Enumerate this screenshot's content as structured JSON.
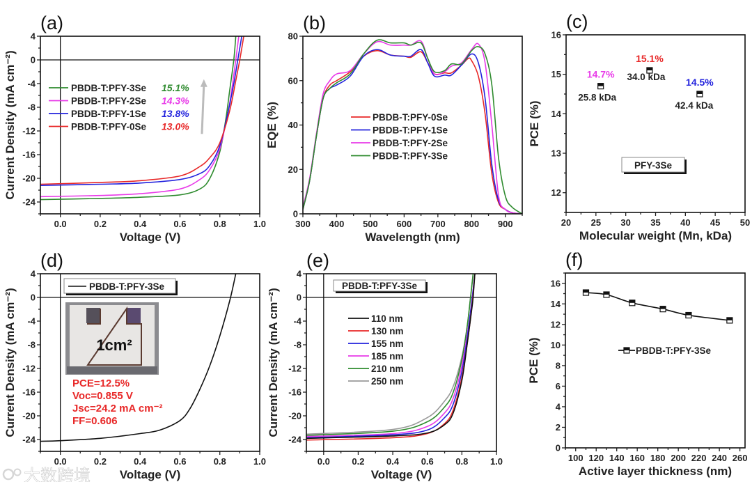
{
  "chart_data": [
    {
      "id": "a",
      "type": "line",
      "panel_label": "(a)",
      "xlabel": "Voltage (V)",
      "ylabel": "Current Density (mA cm⁻²)",
      "xlim": [
        -0.1,
        1.0
      ],
      "ylim": [
        -26,
        4
      ],
      "xticks": [
        0,
        0.2,
        0.4,
        0.6,
        0.8,
        1.0
      ],
      "xtick_labels": [
        "0.0",
        "0.2",
        "0.4",
        "0.6",
        "0.8",
        "1.0"
      ],
      "yticks": [
        4,
        0,
        -4,
        -8,
        -12,
        -16,
        -20,
        -24
      ],
      "ytick_labels": [
        "4",
        "0",
        "-4",
        "-8",
        "-12",
        "-16",
        "-20",
        "-24"
      ],
      "zero_lines": true,
      "legend": [
        {
          "name": "PBDB-T:PFY-3Se",
          "pce": "15.1%",
          "color": "#2e8b2e"
        },
        {
          "name": "PBDB-T:PFY-2Se",
          "pce": "14.3%",
          "color": "#e83ae8"
        },
        {
          "name": "PBDB-T:PFY-1Se",
          "pce": "13.8%",
          "color": "#2222dd"
        },
        {
          "name": "PBDB-T:PFY-0Se",
          "pce": "13.0%",
          "color": "#e82828"
        }
      ],
      "arrow": {
        "from": [
          0.71,
          -12.5
        ],
        "to": [
          0.72,
          -3.5
        ],
        "color": "#bbbbbb"
      },
      "series": [
        {
          "name": "PBDB-T:PFY-3Se",
          "color": "#2e8b2e",
          "x": [
            -0.1,
            0.2,
            0.4,
            0.6,
            0.7,
            0.75,
            0.8,
            0.83,
            0.85,
            0.87,
            0.88
          ],
          "y": [
            -23.6,
            -23.4,
            -23.2,
            -22.8,
            -21.8,
            -20,
            -15.5,
            -10,
            -5,
            0,
            4
          ]
        },
        {
          "name": "PBDB-T:PFY-2Se",
          "color": "#e83ae8",
          "x": [
            -0.1,
            0.2,
            0.4,
            0.6,
            0.7,
            0.75,
            0.8,
            0.84,
            0.86,
            0.88,
            0.895
          ],
          "y": [
            -23.1,
            -22.9,
            -22.6,
            -21.8,
            -20.2,
            -18.5,
            -15,
            -9,
            -5,
            0,
            4
          ]
        },
        {
          "name": "PBDB-T:PFY-1Se",
          "color": "#2222dd",
          "x": [
            -0.1,
            0.2,
            0.4,
            0.6,
            0.7,
            0.75,
            0.8,
            0.84,
            0.87,
            0.89,
            0.91
          ],
          "y": [
            -21.2,
            -21.0,
            -20.8,
            -20.2,
            -19.2,
            -17.8,
            -14.5,
            -9,
            -4,
            0,
            4
          ]
        },
        {
          "name": "PBDB-T:PFY-0Se",
          "color": "#e82828",
          "x": [
            -0.1,
            0.2,
            0.4,
            0.6,
            0.7,
            0.75,
            0.8,
            0.85,
            0.88,
            0.9,
            0.92
          ],
          "y": [
            -21.0,
            -20.7,
            -20.4,
            -19.6,
            -18.0,
            -16.5,
            -14,
            -8.5,
            -3.5,
            0,
            4
          ]
        }
      ]
    },
    {
      "id": "b",
      "type": "line",
      "panel_label": "(b)",
      "xlabel": "Wavelength (nm)",
      "ylabel": "EQE (%)",
      "xlim": [
        300,
        950
      ],
      "ylim": [
        0,
        80
      ],
      "xticks": [
        300,
        400,
        500,
        600,
        700,
        800,
        900
      ],
      "xtick_labels": [
        "300",
        "400",
        "500",
        "600",
        "700",
        "800",
        "900"
      ],
      "yticks": [
        0,
        20,
        40,
        60,
        80
      ],
      "ytick_labels": [
        "0",
        "20",
        "40",
        "60",
        "80"
      ],
      "legend": [
        {
          "name": "PBDB-T:PFY-0Se",
          "color": "#e82828"
        },
        {
          "name": "PBDB-T:PFY-1Se",
          "color": "#2222dd"
        },
        {
          "name": "PBDB-T:PFY-2Se",
          "color": "#e83ae8"
        },
        {
          "name": "PBDB-T:PFY-3Se",
          "color": "#2e8b2e"
        }
      ],
      "series": [
        {
          "name": "PBDB-T:PFY-0Se",
          "color": "#e82828",
          "x": [
            300,
            320,
            340,
            360,
            380,
            400,
            440,
            480,
            520,
            560,
            600,
            620,
            650,
            670,
            690,
            720,
            740,
            770,
            790,
            800,
            820,
            840,
            860,
            880,
            900,
            920,
            950
          ],
          "y": [
            2,
            15,
            35,
            52,
            58,
            60,
            64,
            71,
            73.5,
            71.5,
            71,
            70.5,
            73,
            68,
            63,
            63.5,
            63.5,
            67,
            70,
            69,
            62,
            45,
            18,
            5,
            2,
            0.5,
            0
          ]
        },
        {
          "name": "PBDB-T:PFY-1Se",
          "color": "#2222dd",
          "x": [
            300,
            320,
            340,
            360,
            380,
            400,
            440,
            480,
            520,
            560,
            600,
            620,
            650,
            670,
            690,
            720,
            740,
            770,
            800,
            820,
            840,
            860,
            880,
            900,
            920,
            950
          ],
          "y": [
            2,
            15,
            35,
            52,
            56.5,
            58,
            62,
            71,
            74,
            71.5,
            71,
            71,
            74,
            68,
            62,
            62.5,
            62.5,
            67,
            72,
            68,
            52,
            22,
            6,
            2,
            0.5,
            0
          ]
        },
        {
          "name": "PBDB-T:PFY-2Se",
          "color": "#e83ae8",
          "x": [
            300,
            320,
            340,
            360,
            380,
            400,
            440,
            480,
            520,
            560,
            600,
            620,
            650,
            670,
            690,
            720,
            740,
            770,
            800,
            820,
            840,
            860,
            880,
            900,
            920,
            950
          ],
          "y": [
            3,
            16,
            36,
            54,
            60,
            63,
            64.5,
            72,
            77.5,
            76,
            76,
            76,
            77.8,
            70,
            63,
            64,
            66.5,
            68,
            74,
            76.5,
            68,
            40,
            8,
            2,
            0.5,
            0
          ]
        },
        {
          "name": "PBDB-T:PFY-3Se",
          "color": "#2e8b2e",
          "x": [
            300,
            320,
            340,
            360,
            380,
            400,
            440,
            480,
            520,
            560,
            600,
            620,
            650,
            670,
            690,
            720,
            740,
            770,
            800,
            820,
            840,
            860,
            880,
            900,
            920,
            950
          ],
          "y": [
            2,
            15,
            35,
            52,
            56.5,
            59,
            63,
            72,
            78.2,
            77,
            77,
            76,
            77,
            70,
            64,
            64.5,
            67.5,
            67.5,
            73.5,
            75.3,
            72,
            58,
            25,
            8,
            3,
            0
          ]
        }
      ]
    },
    {
      "id": "c",
      "type": "scatter",
      "panel_label": "(c)",
      "xlabel": "Molecular weight (Mn, kDa)",
      "ylabel": "PCE (%)",
      "xlim": [
        20,
        50
      ],
      "ylim": [
        11.5,
        16
      ],
      "xticks": [
        20,
        25,
        30,
        35,
        40,
        45,
        50
      ],
      "xtick_labels": [
        "20",
        "25",
        "30",
        "35",
        "40",
        "45",
        "50"
      ],
      "yticks": [
        12,
        13,
        14,
        15,
        16
      ],
      "ytick_labels": [
        "12",
        "13",
        "14",
        "15",
        "16"
      ],
      "legend_box": "PFY-3Se",
      "points": [
        {
          "x": 25.8,
          "y": 14.7,
          "pce_label": "14.7%",
          "mw_label": "25.8 kDa",
          "color": "#e83ae8"
        },
        {
          "x": 34.0,
          "y": 15.1,
          "pce_label": "15.1%",
          "mw_label": "34.0 kDa",
          "color": "#e82828"
        },
        {
          "x": 42.4,
          "y": 14.5,
          "pce_label": "14.5%",
          "mw_label": "42.4 kDa",
          "color": "#2222dd"
        }
      ]
    },
    {
      "id": "d",
      "type": "line",
      "panel_label": "(d)",
      "xlabel": "Voltage (V)",
      "ylabel": "Current Density (mA cm⁻²)",
      "xlim": [
        -0.1,
        1.0
      ],
      "ylim": [
        -26,
        4
      ],
      "xticks": [
        0,
        0.2,
        0.4,
        0.6,
        0.8,
        1.0
      ],
      "xtick_labels": [
        "0.0",
        "0.2",
        "0.4",
        "0.6",
        "0.8",
        "1.0"
      ],
      "yticks": [
        4,
        0,
        -4,
        -8,
        -12,
        -16,
        -20,
        -24
      ],
      "ytick_labels": [
        "4",
        "0",
        "-4",
        "-8",
        "-12",
        "-16",
        "-20",
        "-24"
      ],
      "zero_lines": true,
      "legend_box": "PBDB-T:PFY-3Se",
      "inset_label": "1cm²",
      "annotations": [
        "PCE=12.5%",
        "Voc=0.855 V",
        "Jsc=24.2 mA cm⁻²",
        "FF=0.606"
      ],
      "annotation_color": "#e82828",
      "series": [
        {
          "name": "PBDB-T:PFY-3Se",
          "color": "#111111",
          "x": [
            -0.1,
            0,
            0.2,
            0.4,
            0.5,
            0.6,
            0.65,
            0.7,
            0.75,
            0.8,
            0.85,
            0.88
          ],
          "y": [
            -24.3,
            -24.2,
            -23.8,
            -23.0,
            -22.4,
            -20.8,
            -18.8,
            -15.5,
            -11.5,
            -6.5,
            -0.5,
            4
          ]
        }
      ]
    },
    {
      "id": "e",
      "type": "line",
      "panel_label": "(e)",
      "xlabel": "Voltage (V)",
      "ylabel": "Current Density (mA cm⁻²)",
      "xlim": [
        -0.1,
        1.0
      ],
      "ylim": [
        -26,
        4
      ],
      "xticks": [
        0,
        0.2,
        0.4,
        0.6,
        0.8,
        1.0
      ],
      "xtick_labels": [
        "0.0",
        "0.2",
        "0.4",
        "0.6",
        "0.8",
        "1.0"
      ],
      "yticks": [
        4,
        0,
        -4,
        -8,
        -12,
        -16,
        -20,
        -24
      ],
      "ytick_labels": [
        "4",
        "0",
        "-4",
        "-8",
        "-12",
        "-16",
        "-20",
        "-24"
      ],
      "zero_lines": true,
      "legend_box": "PBDB-T:PFY-3Se",
      "legend": [
        {
          "name": "110 nm",
          "color": "#111111"
        },
        {
          "name": "130 nm",
          "color": "#e82828"
        },
        {
          "name": "155 nm",
          "color": "#2222dd"
        },
        {
          "name": "185 nm",
          "color": "#e83ae8"
        },
        {
          "name": "210 nm",
          "color": "#2e8b2e"
        },
        {
          "name": "250 nm",
          "color": "#999999"
        }
      ],
      "series": [
        {
          "name": "250 nm",
          "color": "#999999",
          "x": [
            -0.1,
            0.4,
            0.6,
            0.7,
            0.75,
            0.8,
            0.83,
            0.85,
            0.865
          ],
          "y": [
            -23.1,
            -22.3,
            -20.3,
            -17.5,
            -15,
            -10,
            -5,
            0,
            4
          ]
        },
        {
          "name": "210 nm",
          "color": "#2e8b2e",
          "x": [
            -0.1,
            0.4,
            0.6,
            0.7,
            0.75,
            0.8,
            0.83,
            0.85,
            0.865
          ],
          "y": [
            -23.3,
            -22.6,
            -21.0,
            -18.5,
            -16,
            -10.5,
            -5,
            0,
            4
          ]
        },
        {
          "name": "185 nm",
          "color": "#e83ae8",
          "x": [
            -0.1,
            0.4,
            0.6,
            0.7,
            0.75,
            0.8,
            0.84,
            0.86,
            0.875
          ],
          "y": [
            -23.5,
            -23.0,
            -21.8,
            -19.5,
            -17,
            -11.5,
            -4.5,
            0,
            4
          ]
        },
        {
          "name": "155 nm",
          "color": "#2222dd",
          "x": [
            -0.1,
            0.4,
            0.6,
            0.7,
            0.75,
            0.8,
            0.83,
            0.86,
            0.875
          ],
          "y": [
            -23.7,
            -23.2,
            -22.4,
            -20.3,
            -18,
            -12.5,
            -7,
            0,
            4
          ]
        },
        {
          "name": "130 nm",
          "color": "#e82828",
          "x": [
            -0.1,
            0.4,
            0.6,
            0.7,
            0.75,
            0.8,
            0.83,
            0.86,
            0.875
          ],
          "y": [
            -24.1,
            -23.7,
            -23.0,
            -21.3,
            -19,
            -13.5,
            -8,
            -1,
            4
          ]
        },
        {
          "name": "110 nm",
          "color": "#111111",
          "x": [
            -0.1,
            0.4,
            0.6,
            0.7,
            0.75,
            0.8,
            0.83,
            0.855,
            0.865,
            0.875
          ],
          "y": [
            -23.8,
            -23.4,
            -22.9,
            -21.5,
            -19.5,
            -14,
            -8,
            -2.5,
            0,
            4
          ]
        }
      ]
    },
    {
      "id": "f",
      "type": "line",
      "panel_label": "(f)",
      "xlabel": "Active layer thickness (nm)",
      "ylabel": "PCE (%)",
      "xlim": [
        90,
        265
      ],
      "ylim": [
        0,
        17
      ],
      "xticks": [
        100,
        120,
        140,
        160,
        180,
        200,
        220,
        240,
        260
      ],
      "xtick_labels": [
        "100",
        "120",
        "140",
        "160",
        "180",
        "200",
        "220",
        "240",
        "260"
      ],
      "yticks": [
        0,
        2,
        4,
        6,
        8,
        10,
        12,
        14,
        16
      ],
      "ytick_labels": [
        "0",
        "2",
        "4",
        "6",
        "8",
        "10",
        "12",
        "14",
        "16"
      ],
      "legend": [
        {
          "name": "PBDB-T:PFY-3Se",
          "color": "#111111"
        }
      ],
      "series": [
        {
          "name": "PBDB-T:PFY-3Se",
          "color": "#111111",
          "markers": true,
          "x": [
            110,
            130,
            155,
            185,
            210,
            250
          ],
          "y": [
            15.1,
            14.9,
            14.1,
            13.5,
            12.9,
            12.4
          ]
        }
      ]
    }
  ],
  "watermark": "大数跨境"
}
